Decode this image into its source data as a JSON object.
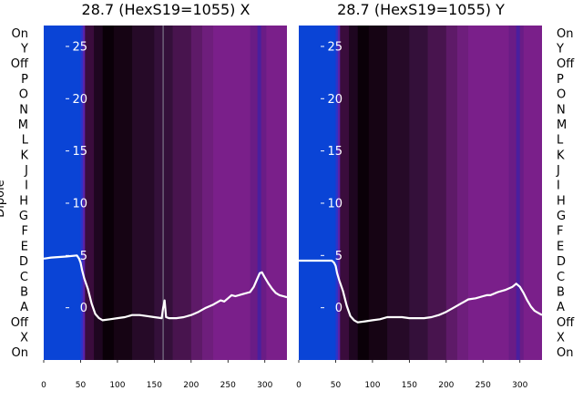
{
  "chart_data": [
    {
      "type": "heatmap",
      "title": "28.7 (HexS19=1055) X",
      "ylabel": "Dipole",
      "xlim": [
        0,
        330
      ],
      "x_ticks": [
        "0",
        "50",
        "100",
        "150",
        "200",
        "250",
        "300"
      ],
      "categories": [
        "On",
        "Y",
        "Off",
        "P",
        "O",
        "N",
        "M",
        "L",
        "K",
        "J",
        "I",
        "H",
        "G",
        "F",
        "E",
        "D",
        "C",
        "B",
        "A",
        "Off",
        "X",
        "On"
      ],
      "overlay_ylim": [
        -5,
        27
      ],
      "overlay_ticks": [
        "25",
        "20",
        "15",
        "10",
        "5",
        "0"
      ],
      "heat_bands": [
        {
          "x0": 0,
          "x1": 50,
          "color": "#0a44d6"
        },
        {
          "x0": 50,
          "x1": 53,
          "color": "#2a35c8"
        },
        {
          "x0": 53,
          "x1": 56,
          "color": "#5a22a8"
        },
        {
          "x0": 56,
          "x1": 68,
          "color": "#3a0c3c"
        },
        {
          "x0": 68,
          "x1": 80,
          "color": "#1e0620"
        },
        {
          "x0": 80,
          "x1": 95,
          "color": "#0a0008"
        },
        {
          "x0": 95,
          "x1": 120,
          "color": "#160414"
        },
        {
          "x0": 120,
          "x1": 150,
          "color": "#260a28"
        },
        {
          "x0": 150,
          "x1": 175,
          "color": "#34103a"
        },
        {
          "x0": 175,
          "x1": 200,
          "color": "#48144e"
        },
        {
          "x0": 200,
          "x1": 215,
          "color": "#5e1a68"
        },
        {
          "x0": 215,
          "x1": 230,
          "color": "#6e1e7c"
        },
        {
          "x0": 230,
          "x1": 280,
          "color": "#7a1f8a"
        },
        {
          "x0": 280,
          "x1": 290,
          "color": "#6a1c86"
        },
        {
          "x0": 290,
          "x1": 295,
          "color": "#4a1f9e"
        },
        {
          "x0": 295,
          "x1": 302,
          "color": "#6a1c86"
        },
        {
          "x0": 302,
          "x1": 330,
          "color": "#7a1f8a"
        }
      ],
      "overlay_line": {
        "color": "#ffffff",
        "x": [
          0,
          10,
          30,
          45,
          48,
          50,
          52,
          55,
          60,
          65,
          70,
          75,
          80,
          90,
          100,
          110,
          120,
          130,
          140,
          150,
          160,
          162,
          164,
          166,
          170,
          180,
          190,
          200,
          210,
          220,
          230,
          240,
          245,
          250,
          255,
          260,
          270,
          280,
          285,
          290,
          293,
          296,
          300,
          305,
          310,
          315,
          320,
          325,
          330
        ],
        "y": [
          4.7,
          4.8,
          4.9,
          5.0,
          4.7,
          4.3,
          3.6,
          2.8,
          1.8,
          0.4,
          -0.6,
          -1.0,
          -1.2,
          -1.1,
          -1.0,
          -0.9,
          -0.7,
          -0.7,
          -0.8,
          -0.9,
          -1.0,
          0.0,
          0.7,
          -0.9,
          -1.0,
          -1.0,
          -0.9,
          -0.7,
          -0.4,
          0.0,
          0.3,
          0.7,
          0.6,
          0.9,
          1.2,
          1.1,
          1.3,
          1.5,
          2.0,
          2.8,
          3.3,
          3.4,
          2.9,
          2.3,
          1.8,
          1.4,
          1.2,
          1.1,
          1.0
        ]
      },
      "vlines": [
        {
          "x": 162,
          "color": "#8a8a9a"
        }
      ]
    },
    {
      "type": "heatmap",
      "title": "28.7 (HexS19=1055) Y",
      "ylabel": "",
      "xlim": [
        0,
        330
      ],
      "x_ticks": [
        "0",
        "50",
        "100",
        "150",
        "200",
        "250",
        "300"
      ],
      "categories": [
        "On",
        "Y",
        "Off",
        "P",
        "O",
        "N",
        "M",
        "L",
        "K",
        "J",
        "I",
        "H",
        "G",
        "F",
        "E",
        "D",
        "C",
        "B",
        "A",
        "Off",
        "X",
        "On"
      ],
      "overlay_ylim": [
        -5,
        27
      ],
      "overlay_ticks": [
        "25",
        "20",
        "15",
        "10",
        "5",
        "0"
      ],
      "heat_bands": [
        {
          "x0": 0,
          "x1": 50,
          "color": "#0a44d6"
        },
        {
          "x0": 50,
          "x1": 53,
          "color": "#2a35c8"
        },
        {
          "x0": 53,
          "x1": 56,
          "color": "#5a22a8"
        },
        {
          "x0": 56,
          "x1": 68,
          "color": "#3a0c3c"
        },
        {
          "x0": 68,
          "x1": 80,
          "color": "#1e0620"
        },
        {
          "x0": 80,
          "x1": 95,
          "color": "#0a0008"
        },
        {
          "x0": 95,
          "x1": 120,
          "color": "#160414"
        },
        {
          "x0": 120,
          "x1": 150,
          "color": "#260a28"
        },
        {
          "x0": 150,
          "x1": 175,
          "color": "#34103a"
        },
        {
          "x0": 175,
          "x1": 200,
          "color": "#48144e"
        },
        {
          "x0": 200,
          "x1": 215,
          "color": "#5e1a68"
        },
        {
          "x0": 215,
          "x1": 230,
          "color": "#6e1e7c"
        },
        {
          "x0": 230,
          "x1": 285,
          "color": "#7a1f8a"
        },
        {
          "x0": 285,
          "x1": 295,
          "color": "#6a1c86"
        },
        {
          "x0": 295,
          "x1": 300,
          "color": "#4a1f9e"
        },
        {
          "x0": 300,
          "x1": 305,
          "color": "#6a1c86"
        },
        {
          "x0": 305,
          "x1": 330,
          "color": "#7a1f8a"
        }
      ],
      "overlay_line": {
        "color": "#ffffff",
        "x": [
          0,
          10,
          30,
          45,
          48,
          50,
          52,
          55,
          60,
          65,
          70,
          75,
          80,
          90,
          100,
          110,
          120,
          130,
          140,
          150,
          160,
          170,
          180,
          190,
          200,
          210,
          220,
          230,
          240,
          250,
          255,
          260,
          270,
          280,
          290,
          295,
          300,
          305,
          310,
          315,
          320,
          325,
          330
        ],
        "y": [
          4.5,
          4.5,
          4.5,
          4.5,
          4.3,
          4.0,
          3.3,
          2.6,
          1.6,
          0.2,
          -0.8,
          -1.2,
          -1.4,
          -1.3,
          -1.2,
          -1.1,
          -0.9,
          -0.9,
          -0.9,
          -1.0,
          -1.0,
          -1.0,
          -0.9,
          -0.7,
          -0.4,
          0.0,
          0.4,
          0.8,
          0.9,
          1.1,
          1.2,
          1.2,
          1.5,
          1.7,
          2.0,
          2.3,
          2.0,
          1.4,
          0.7,
          0.1,
          -0.3,
          -0.5,
          -0.7
        ]
      },
      "vlines": []
    }
  ]
}
